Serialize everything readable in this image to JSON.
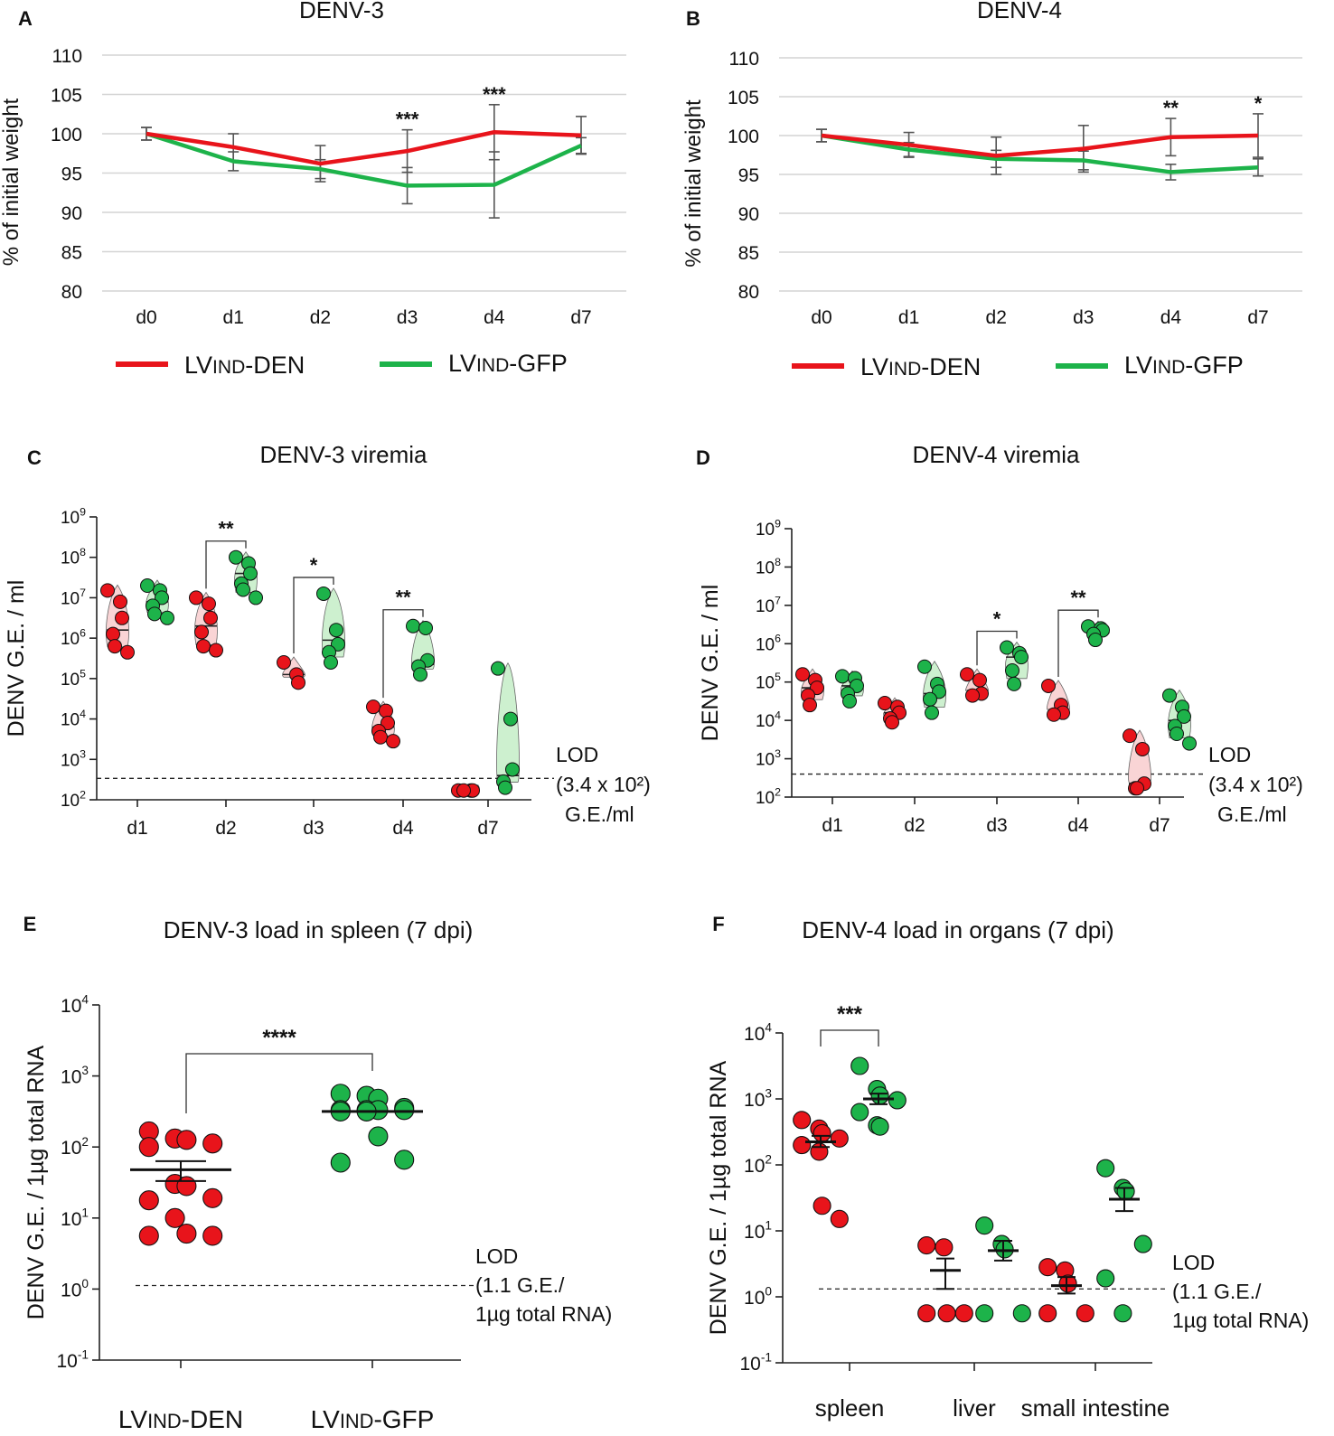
{
  "colors": {
    "den": "#e8141b",
    "gfp": "#1db34a",
    "den_fill": "#f9d4d5",
    "gfp_fill": "#cdf0cf",
    "grid": "#d4d4d4",
    "err": "#555555"
  },
  "chart_data": [
    {
      "panel": "A",
      "type": "line",
      "title": "DENV-3",
      "ylabel": "% of initial weight",
      "categories": [
        "d0",
        "d1",
        "d2",
        "d3",
        "d4",
        "d7"
      ],
      "ylim": [
        80,
        110
      ],
      "yticks": [
        80,
        85,
        90,
        95,
        100,
        105,
        110
      ],
      "grid": true,
      "series": [
        {
          "name": "LVIND-DEN",
          "values": [
            100,
            98.3,
            96.2,
            97.8,
            100.2,
            99.8
          ],
          "err": [
            0.8,
            1.7,
            2.3,
            2.7,
            3.5,
            2.4
          ]
        },
        {
          "name": "LVIND-GFP",
          "values": [
            100,
            96.5,
            95.5,
            93.4,
            93.5,
            98.5
          ],
          "err": [
            0.8,
            1.2,
            1.2,
            2.3,
            4.2,
            1.0
          ]
        }
      ],
      "annotations": [
        {
          "x": "d3",
          "text": "***"
        },
        {
          "x": "d4",
          "text": "***"
        }
      ],
      "legend": [
        "LVIND-DEN",
        "LVIND-GFP"
      ]
    },
    {
      "panel": "B",
      "type": "line",
      "title": "DENV-4",
      "ylabel": "% of initial weight",
      "categories": [
        "d0",
        "d1",
        "d2",
        "d3",
        "d4",
        "d7"
      ],
      "ylim": [
        80,
        110
      ],
      "yticks": [
        80,
        85,
        90,
        95,
        100,
        105,
        110
      ],
      "grid": true,
      "series": [
        {
          "name": "LVIND-DEN",
          "values": [
            100,
            98.8,
            97.4,
            98.3,
            99.8,
            100
          ],
          "err": [
            0.8,
            1.6,
            2.4,
            3.0,
            2.4,
            2.8
          ]
        },
        {
          "name": "LVIND-GFP",
          "values": [
            100,
            98.2,
            97.0,
            96.8,
            95.3,
            95.9
          ],
          "err": [
            0.8,
            0.9,
            1.1,
            1.2,
            1.0,
            1.1
          ]
        }
      ],
      "annotations": [
        {
          "x": "d4",
          "text": "**"
        },
        {
          "x": "d7",
          "text": "*"
        }
      ],
      "legend": [
        "LVIND-DEN",
        "LVIND-GFP"
      ]
    },
    {
      "panel": "C",
      "type": "scatter",
      "title": "DENV-3 viremia",
      "ylabel": "DENV G.E. / ml",
      "yscale": "log",
      "ylim_log10": [
        2,
        9
      ],
      "categories": [
        "d1",
        "d2",
        "d3",
        "d4",
        "d7"
      ],
      "lod_log10": 2.53,
      "lod_label": [
        "LOD",
        "(3.4 x 10²)",
        "G.E./ml"
      ],
      "groups": [
        {
          "cat": "d1",
          "series": "LVIND-DEN",
          "log10": [
            7.18,
            6.9,
            6.5,
            6.1,
            5.8,
            5.65
          ],
          "median": 6.2
        },
        {
          "cat": "d1",
          "series": "LVIND-GFP",
          "log10": [
            7.3,
            7.18,
            7.0,
            6.8,
            6.6,
            6.5
          ],
          "median": 6.9
        },
        {
          "cat": "d2",
          "series": "LVIND-DEN",
          "log10": [
            7.0,
            6.85,
            6.5,
            6.15,
            5.8,
            5.7
          ],
          "median": 6.3
        },
        {
          "cat": "d2",
          "series": "LVIND-GFP",
          "log10": [
            8.0,
            7.85,
            7.6,
            7.35,
            7.2,
            7.0
          ],
          "median": 7.6
        },
        {
          "cat": "d3",
          "series": "LVIND-DEN",
          "log10": [
            5.4,
            5.1,
            4.9
          ],
          "median": 5.1
        },
        {
          "cat": "d3",
          "series": "LVIND-GFP",
          "log10": [
            7.1,
            6.2,
            5.85,
            5.65,
            5.4
          ],
          "median": 5.95
        },
        {
          "cat": "d4",
          "series": "LVIND-DEN",
          "log10": [
            4.3,
            4.2,
            3.9,
            3.7,
            3.55,
            3.45
          ],
          "median": 3.8
        },
        {
          "cat": "d4",
          "series": "LVIND-GFP",
          "log10": [
            6.3,
            6.25,
            5.45,
            5.3,
            5.1
          ],
          "median": 5.35
        },
        {
          "cat": "d7",
          "series": "LVIND-DEN",
          "log10": [
            2.23,
            2.23,
            2.23,
            2.23
          ],
          "median": 2.23
        },
        {
          "cat": "d7",
          "series": "LVIND-GFP",
          "log10": [
            5.25,
            4.0,
            2.75,
            2.45,
            2.3
          ],
          "median": 2.6
        }
      ],
      "brackets": [
        {
          "cat": "d2",
          "text": "**"
        },
        {
          "cat": "d3",
          "text": "*"
        },
        {
          "cat": "d4",
          "text": "**"
        }
      ]
    },
    {
      "panel": "D",
      "type": "scatter",
      "title": "DENV-4 viremia",
      "ylabel": "DENV G.E. / ml",
      "yscale": "log",
      "ylim_log10": [
        2,
        9
      ],
      "categories": [
        "d1",
        "d2",
        "d3",
        "d4",
        "d7"
      ],
      "lod_log10": 2.6,
      "lod_label": [
        "LOD",
        "(3.4 x 10²)",
        "G.E./ml"
      ],
      "groups": [
        {
          "cat": "d1",
          "series": "LVIND-DEN",
          "log10": [
            5.2,
            5.05,
            4.85,
            4.65,
            4.4
          ],
          "median": 4.85
        },
        {
          "cat": "d1",
          "series": "LVIND-GFP",
          "log10": [
            5.15,
            5.1,
            4.9,
            4.7,
            4.5
          ],
          "median": 4.9
        },
        {
          "cat": "d2",
          "series": "LVIND-DEN",
          "log10": [
            4.45,
            4.35,
            4.2,
            4.05,
            3.95
          ],
          "median": 4.2
        },
        {
          "cat": "d2",
          "series": "LVIND-GFP",
          "log10": [
            5.4,
            4.95,
            4.75,
            4.55,
            4.2
          ],
          "median": 4.7
        },
        {
          "cat": "d3",
          "series": "LVIND-DEN",
          "log10": [
            5.2,
            5.05,
            4.7,
            4.65
          ],
          "median": 4.7
        },
        {
          "cat": "d3",
          "series": "LVIND-GFP",
          "log10": [
            5.9,
            5.75,
            5.65,
            5.3,
            4.95
          ],
          "median": 5.65
        },
        {
          "cat": "d4",
          "series": "LVIND-DEN",
          "log10": [
            4.9,
            4.4,
            4.2,
            4.15
          ],
          "median": 4.2
        },
        {
          "cat": "d4",
          "series": "LVIND-GFP",
          "log10": [
            6.45,
            6.4,
            6.35,
            6.25,
            6.1
          ],
          "median": 6.35
        },
        {
          "cat": "d7",
          "series": "LVIND-DEN",
          "log10": [
            3.6,
            3.25,
            2.35,
            2.23,
            2.23
          ],
          "median": 2.35
        },
        {
          "cat": "d7",
          "series": "LVIND-GFP",
          "log10": [
            4.65,
            4.35,
            4.1,
            3.85,
            3.65,
            3.4
          ],
          "median": 4.0
        }
      ],
      "brackets": [
        {
          "cat": "d3",
          "text": "*"
        },
        {
          "cat": "d4",
          "text": "**"
        }
      ]
    },
    {
      "panel": "E",
      "type": "scatter",
      "title": "DENV-3 load in spleen (7 dpi)",
      "ylabel": "DENV G.E. / 1µg total RNA",
      "yscale": "log",
      "ylim_log10": [
        -1,
        4
      ],
      "categories": [
        "LVIND-DEN",
        "LVIND-GFP"
      ],
      "lod_log10": 0.05,
      "lod_label": [
        "LOD",
        "(1.1 G.E./",
        "1µg total RNA)"
      ],
      "groups": [
        {
          "cat": "LVIND-DEN",
          "series": "LVIND-DEN",
          "log10": [
            2.22,
            2.12,
            2.1,
            2.05,
            2.0,
            1.48,
            1.45,
            1.28,
            1.25,
            1.0,
            0.78,
            0.75,
            0.75
          ],
          "mean": 1.68,
          "sem": [
            1.52,
            1.8
          ]
        },
        {
          "cat": "LVIND-GFP",
          "series": "LVIND-GFP",
          "log10": [
            2.75,
            2.72,
            2.68,
            2.55,
            2.52,
            2.52,
            2.52,
            2.52,
            2.5,
            2.5,
            2.15,
            1.82,
            1.78
          ],
          "mean": 2.5
        }
      ],
      "brackets": [
        {
          "text": "****"
        }
      ]
    },
    {
      "panel": "F",
      "type": "scatter",
      "title": "DENV-4 load in organs (7 dpi)",
      "ylabel": "DENV G.E. / 1µg total RNA",
      "yscale": "log",
      "ylim_log10": [
        -1,
        4
      ],
      "categories": [
        "spleen",
        "liver",
        "small intestine"
      ],
      "lod_log10": 0.12,
      "lod_label": [
        "LOD",
        "(1.1 G.E./",
        "1µg total RNA)"
      ],
      "groups": [
        {
          "cat": "spleen",
          "series": "LVIND-DEN",
          "log10": [
            2.68,
            2.55,
            2.48,
            2.4,
            2.3,
            2.2,
            1.38,
            1.18
          ],
          "mean": 2.35,
          "sem": [
            2.27,
            2.44
          ]
        },
        {
          "cat": "spleen",
          "series": "LVIND-GFP",
          "log10": [
            3.5,
            3.15,
            3.05,
            2.98,
            2.8,
            2.6,
            2.58
          ],
          "mean": 3.0,
          "sem": [
            2.92,
            3.08
          ]
        },
        {
          "cat": "liver",
          "series": "LVIND-DEN",
          "log10": [
            0.78,
            0.75,
            -0.25,
            -0.25,
            -0.25
          ],
          "mean": 0.4,
          "sem": [
            0.12,
            0.58
          ]
        },
        {
          "cat": "liver",
          "series": "LVIND-GFP",
          "log10": [
            1.08,
            0.8,
            0.72,
            -0.25,
            -0.25
          ],
          "mean": 0.7,
          "sem": [
            0.55,
            0.85
          ]
        },
        {
          "cat": "small intestine",
          "series": "LVIND-DEN",
          "log10": [
            0.45,
            0.4,
            0.2,
            -0.25,
            -0.25
          ],
          "mean": 0.17,
          "sem": [
            0.05,
            0.3
          ]
        },
        {
          "cat": "small intestine",
          "series": "LVIND-GFP",
          "log10": [
            1.95,
            1.65,
            1.6,
            0.8,
            0.28,
            -0.25
          ],
          "mean": 1.48,
          "sem": [
            1.3,
            1.65
          ]
        }
      ],
      "brackets": [
        {
          "cat": "spleen",
          "text": "***"
        }
      ]
    }
  ]
}
